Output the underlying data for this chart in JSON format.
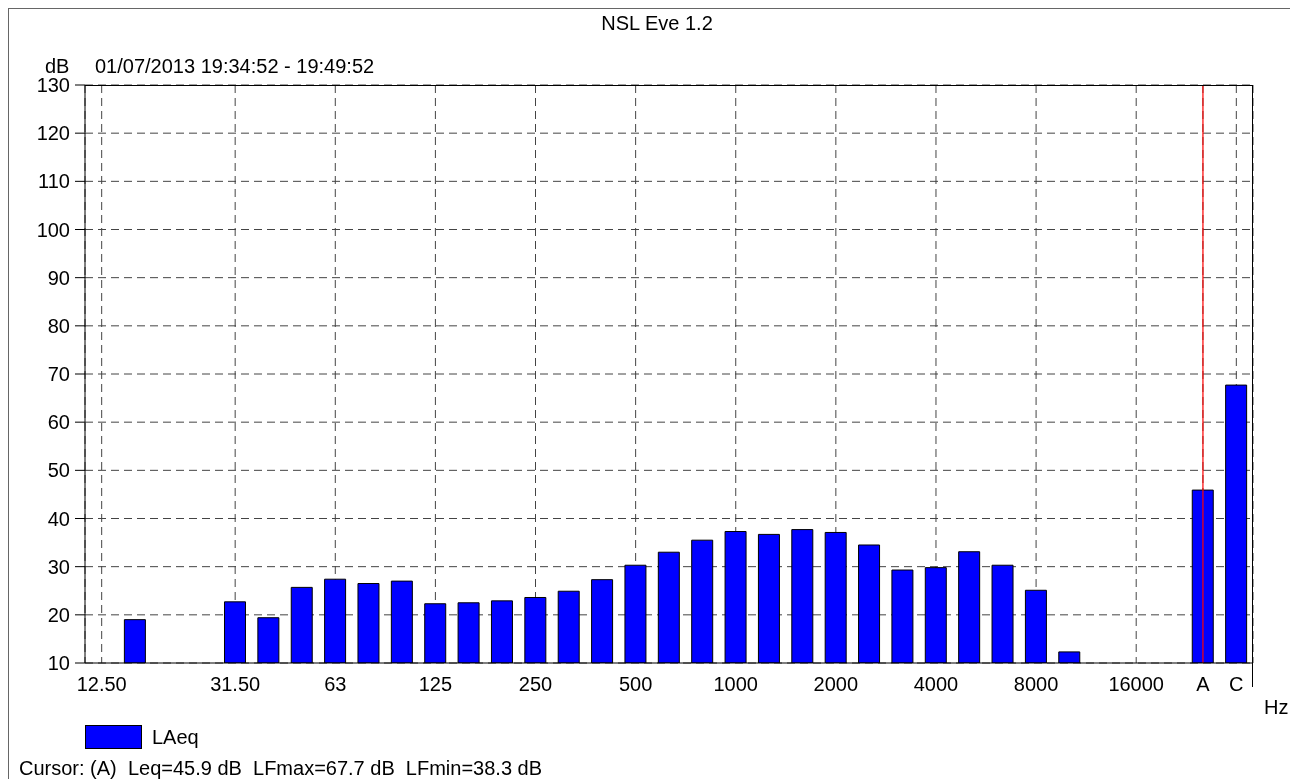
{
  "chart_data": {
    "type": "bar",
    "title": "NSL Eve 1.2",
    "subtitle": "01/07/2013 19:34:52 - 19:49:52",
    "xlabel": "Hz",
    "ylabel": "dB",
    "categories": [
      "12.50",
      null,
      null,
      null,
      "31.50",
      null,
      null,
      "63",
      null,
      null,
      "125",
      null,
      null,
      "250",
      null,
      null,
      "500",
      null,
      null,
      "1000",
      null,
      null,
      "2000",
      null,
      null,
      "4000",
      null,
      null,
      "8000",
      null,
      null,
      "16000",
      null,
      "A",
      "C"
    ],
    "series": [
      {
        "name": "LAeq",
        "color": "#0000ff",
        "values": [
          null,
          19.0,
          null,
          null,
          22.7,
          19.4,
          25.7,
          27.4,
          26.5,
          27.0,
          22.3,
          22.5,
          22.9,
          23.6,
          24.9,
          27.3,
          30.3,
          33.0,
          35.5,
          37.3,
          36.7,
          37.7,
          37.1,
          34.5,
          29.3,
          29.8,
          33.1,
          30.3,
          25.1,
          12.3,
          null,
          null,
          null,
          45.9,
          67.7
        ]
      }
    ],
    "ylim": [
      10,
      130
    ],
    "yticks": [
      10,
      20,
      30,
      40,
      50,
      60,
      70,
      80,
      90,
      100,
      110,
      120,
      130
    ],
    "grid": true,
    "legend": "bottom left",
    "ref_lines": [
      {
        "axis": "x",
        "value": "A",
        "color": "#ff0000"
      }
    ],
    "annotations": [
      "Cursor: (A)  Leq=45.9 dB  LFmax=67.7 dB  LFmin=38.3 dB"
    ]
  }
}
